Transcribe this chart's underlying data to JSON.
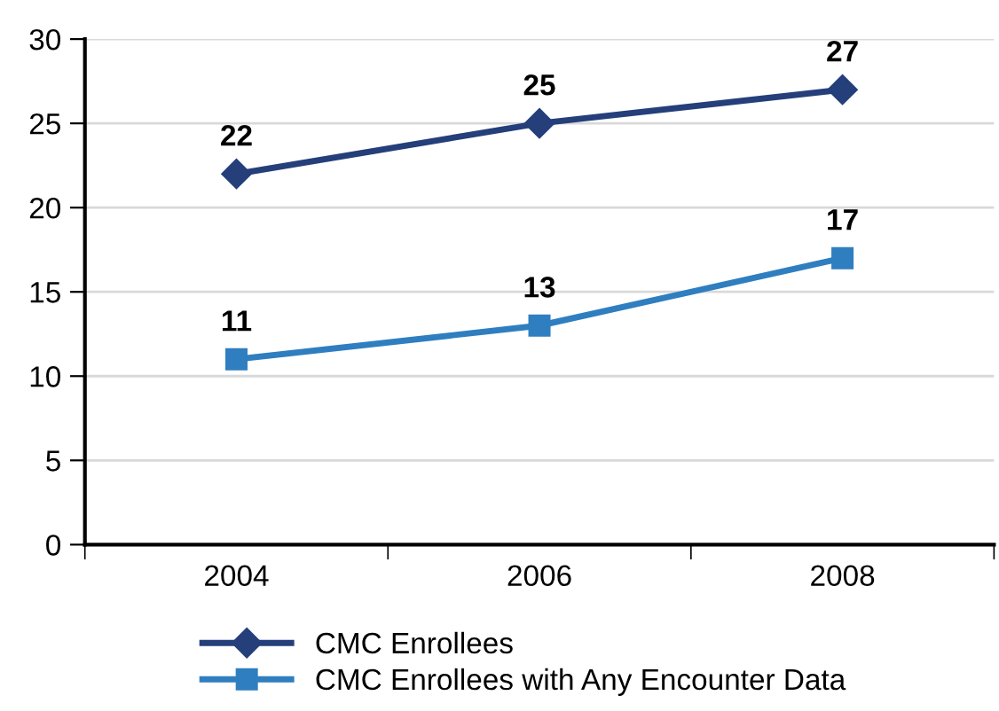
{
  "chart_data": {
    "type": "line",
    "categories": [
      "2004",
      "2006",
      "2008"
    ],
    "series": [
      {
        "name": "CMC Enrollees",
        "color": "#243f7a",
        "values": [
          22,
          25,
          27
        ],
        "marker": "diamond"
      },
      {
        "name": "CMC Enrollees with Any Encounter Data",
        "color": "#2f7ec0",
        "values": [
          11,
          13,
          17
        ],
        "marker": "square"
      }
    ],
    "ylim": [
      0,
      30
    ],
    "yticks": [
      0,
      5,
      10,
      15,
      20,
      25,
      30
    ],
    "grid": "y",
    "legend": "bottom",
    "data_labels": true,
    "line_style": "solid"
  }
}
